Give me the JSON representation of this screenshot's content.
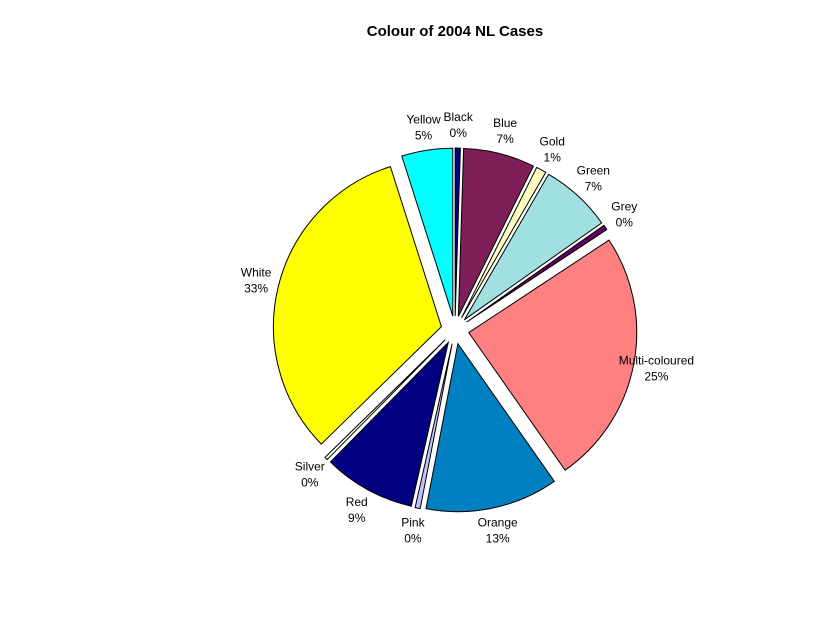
{
  "chart_data": {
    "type": "pie",
    "title": "Colour of 2004 NL Cases",
    "exploded": true,
    "slices": [
      {
        "label": "Black",
        "percent_label": "0%",
        "value": 0.5,
        "color": "#000080"
      },
      {
        "label": "Blue",
        "percent_label": "7%",
        "value": 7,
        "color": "#7f1f5a"
      },
      {
        "label": "Gold",
        "percent_label": "1%",
        "value": 1,
        "color": "#ffffc0"
      },
      {
        "label": "Green",
        "percent_label": "7%",
        "value": 7,
        "color": "#a0e0e0"
      },
      {
        "label": "Grey",
        "percent_label": "0%",
        "value": 0.5,
        "color": "#600060"
      },
      {
        "label": "Multi-coloured",
        "percent_label": "25%",
        "value": 25,
        "color": "#ff8080"
      },
      {
        "label": "Orange",
        "percent_label": "13%",
        "value": 13,
        "color": "#0080c0"
      },
      {
        "label": "Pink",
        "percent_label": "0%",
        "value": 0.5,
        "color": "#c0c0ff"
      },
      {
        "label": "Red",
        "percent_label": "9%",
        "value": 9,
        "color": "#000080"
      },
      {
        "label": "Silver",
        "percent_label": "0%",
        "value": 0.3,
        "color": "#ffffff"
      },
      {
        "label": "White",
        "percent_label": "33%",
        "value": 33,
        "color": "#ffff00"
      },
      {
        "label": "Yellow",
        "percent_label": "5%",
        "value": 5,
        "color": "#00ffff"
      }
    ]
  }
}
